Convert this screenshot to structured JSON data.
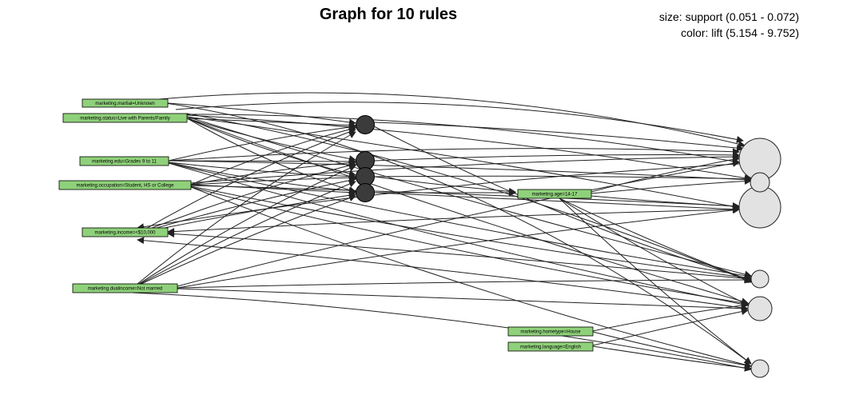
{
  "graph": {
    "title": "Graph for 10 rules",
    "legend_size": "size: support (0.051 - 0.072)",
    "legend_color": "color: lift (5.154 - 9.752)",
    "items": [
      {
        "id": "martial",
        "label": "marketing.martial=Unknown"
      },
      {
        "id": "status",
        "label": "marketing.status=Live with Parents/Family"
      },
      {
        "id": "edu",
        "label": "marketing.edu=Grades 9 to 11"
      },
      {
        "id": "occupation",
        "label": "marketing.occupation=Student, HS or College"
      },
      {
        "id": "income",
        "label": "marketing.income=<$10,000"
      },
      {
        "id": "dualincome",
        "label": "marketing.dualincome=Not married"
      },
      {
        "id": "age",
        "label": "marketing.age=14-17"
      },
      {
        "id": "hometype",
        "label": "marketing.hometype=House"
      },
      {
        "id": "language",
        "label": "marketing.language=English"
      }
    ]
  }
}
